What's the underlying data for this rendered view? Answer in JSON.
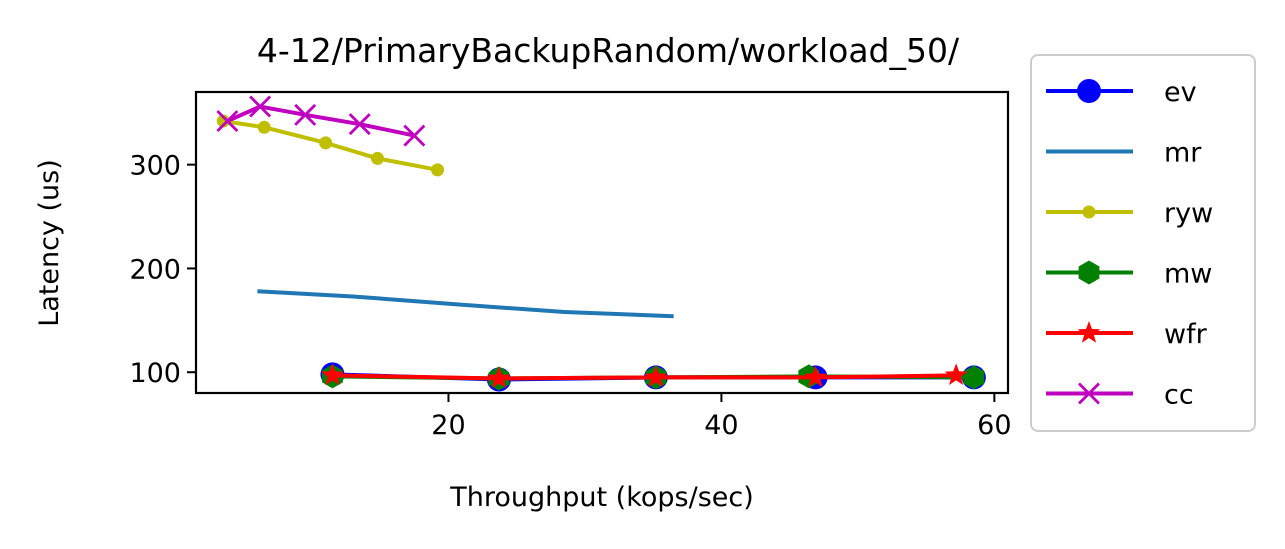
{
  "chart_data": {
    "type": "line",
    "title": "4-12/PrimaryBackupRandom/workload_50/",
    "xlabel": "Throughput (kops/sec)",
    "ylabel": "Latency (us)",
    "xlim": [
      1.5,
      61
    ],
    "ylim": [
      80,
      370
    ],
    "xticks": [
      20,
      40,
      60
    ],
    "yticks": [
      100,
      200,
      300
    ],
    "grid": false,
    "legend_position": "outside-right",
    "series": [
      {
        "name": "ev",
        "color": "#0000ff",
        "marker": "circle",
        "x": [
          11.5,
          23.7,
          35.2,
          46.9,
          58.5
        ],
        "y": [
          98,
          93,
          95,
          95,
          95
        ]
      },
      {
        "name": "mr",
        "color": "#1f77b4",
        "marker": "none",
        "x": [
          6.0,
          13.0,
          21.0,
          28.5,
          36.5
        ],
        "y": [
          178,
          173,
          165,
          158,
          154
        ]
      },
      {
        "name": "ryw",
        "color": "#bfbf00",
        "marker": "point",
        "x": [
          3.5,
          6.5,
          11.0,
          14.8,
          19.2
        ],
        "y": [
          342,
          336,
          321,
          306,
          295
        ]
      },
      {
        "name": "mw",
        "color": "#008000",
        "marker": "hexagon",
        "x": [
          11.5,
          23.7,
          35.2,
          46.4,
          58.5
        ],
        "y": [
          96,
          94,
          95,
          96,
          95
        ]
      },
      {
        "name": "wfr",
        "color": "#ff0000",
        "marker": "star",
        "x": [
          11.5,
          23.7,
          35.2,
          46.9,
          57.2
        ],
        "y": [
          97,
          94,
          95,
          95,
          97
        ]
      },
      {
        "name": "cc",
        "color": "#bf00bf",
        "marker": "x",
        "x": [
          3.8,
          6.2,
          9.5,
          13.5,
          17.5
        ],
        "y": [
          342,
          356,
          348,
          339,
          328
        ]
      }
    ]
  }
}
